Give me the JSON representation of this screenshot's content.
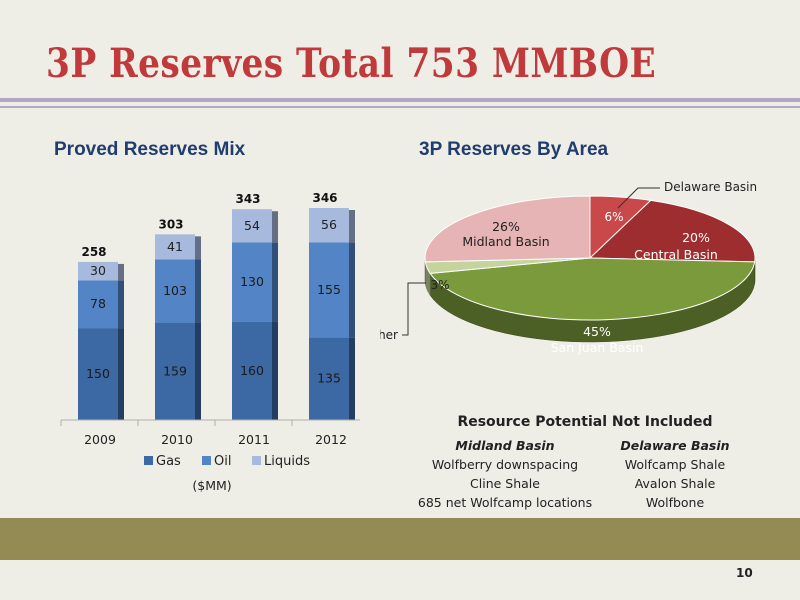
{
  "slide": {
    "title": "3P Reserves Total 753 MMBOE",
    "page_number": "10"
  },
  "left_panel": {
    "title": "Proved Reserves Mix",
    "unit_note": "($MM)"
  },
  "right_panel": {
    "title": "3P Reserves By Area"
  },
  "resource_potential": {
    "title": "Resource Potential Not Included",
    "midland": {
      "heading": "Midland Basin",
      "items": [
        "Wolfberry downspacing",
        "Cline Shale",
        "685 net Wolfcamp locations"
      ]
    },
    "delaware": {
      "heading": "Delaware Basin",
      "items": [
        "Wolfcamp Shale",
        "Avalon Shale",
        "Wolfbone"
      ]
    }
  },
  "colors": {
    "title": "#c0393b",
    "heading": "#1f3d6e",
    "gas": "#3c68a3",
    "oil": "#5385c6",
    "liquids": "#a7b9dd",
    "band": "#948a54",
    "rule": "#b5a6c6"
  },
  "chart_data": [
    {
      "type": "bar",
      "stacked": true,
      "categories": [
        "2009",
        "2010",
        "2011",
        "2012"
      ],
      "series": [
        {
          "name": "Gas",
          "values": [
            150,
            159,
            160,
            135
          ],
          "color": "#3c68a3"
        },
        {
          "name": "Oil",
          "values": [
            78,
            103,
            130,
            155
          ],
          "color": "#5385c6"
        },
        {
          "name": "Liquids",
          "values": [
            30,
            41,
            54,
            56
          ],
          "color": "#a7b9dd"
        }
      ],
      "totals": [
        "258",
        "303",
        "343",
        "346"
      ],
      "ylim": [
        0,
        346
      ],
      "legend_position": "bottom",
      "grid": false
    },
    {
      "type": "pie",
      "style": "3d",
      "slices": [
        {
          "name": "Delaware Basin",
          "value": 6,
          "label": "6%",
          "color": "#c9484a"
        },
        {
          "name": "Central Basin",
          "value": 20,
          "label": "20%",
          "color": "#9e2d2f"
        },
        {
          "name": "San Juan Basin",
          "value": 45,
          "label": "45%",
          "color": "#7a9a3c"
        },
        {
          "name": "Other",
          "value": 3,
          "label": "3%",
          "color": "#c5d49c"
        },
        {
          "name": "Midland Basin",
          "value": 26,
          "label": "26%",
          "color": "#e6b4b4"
        }
      ]
    }
  ]
}
